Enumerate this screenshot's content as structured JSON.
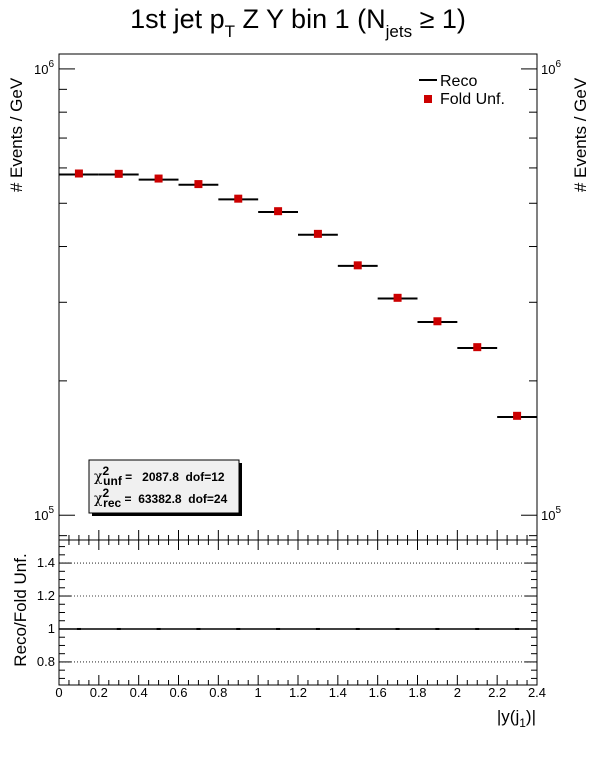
{
  "chart_data": {
    "type": "scatter",
    "title": {
      "main": "1st jet p",
      "main_sub": "T",
      "rest": " Z Y bin 1 (N",
      "rest_sub": "jets",
      "tail": " ≥ 1)"
    },
    "ylabel_left": "# Events / GeV",
    "ylabel_right": "# Events / GeV",
    "xlabel": {
      "base": "|y(j",
      "sub": "1",
      "tail": ")|"
    },
    "ratio_ylabel": "Reco/Fold Unf.",
    "y_scale": "log",
    "ylim": [
      88000,
      1080000
    ],
    "y_ticks": [
      {
        "base": "10",
        "exp": "6",
        "value": 1000000
      },
      {
        "base": "10",
        "exp": "5",
        "value": 100000
      }
    ],
    "xlim": [
      0,
      2.4
    ],
    "x_ticks": [
      "0",
      "0.2",
      "0.4",
      "0.6",
      "0.8",
      "1",
      "1.2",
      "1.4",
      "1.6",
      "1.8",
      "2",
      "2.2",
      "2.4"
    ],
    "ratio_ylim": [
      0.66,
      1.54
    ],
    "ratio_ticks": [
      "0.8",
      "1",
      "1.2",
      "1.4"
    ],
    "ratio_gridlines": [
      0.8,
      1.2,
      1.4
    ],
    "legend": {
      "position": "top-right",
      "entries": [
        {
          "label": "Reco",
          "marker": "line"
        },
        {
          "label": "Fold Unf.",
          "marker": "square"
        }
      ]
    },
    "series": [
      {
        "name": "Reco",
        "color": "#000000",
        "style": "horizontal-bin-lines",
        "bins": [
          [
            0,
            0.2
          ],
          [
            0.2,
            0.4
          ],
          [
            0.4,
            0.6
          ],
          [
            0.6,
            0.8
          ],
          [
            0.8,
            1.0
          ],
          [
            1.0,
            1.2
          ],
          [
            1.2,
            1.4
          ],
          [
            1.4,
            1.6
          ],
          [
            1.6,
            1.8
          ],
          [
            1.8,
            2.0
          ],
          [
            2.0,
            2.2
          ],
          [
            2.2,
            2.4
          ]
        ],
        "values": [
          580000,
          580000,
          565000,
          550000,
          510000,
          478000,
          425000,
          362000,
          306000,
          271000,
          237000,
          166000
        ]
      },
      {
        "name": "Fold Unf.",
        "color": "#cc0000",
        "style": "square-markers",
        "x": [
          0.1,
          0.3,
          0.5,
          0.7,
          0.9,
          1.1,
          1.3,
          1.5,
          1.7,
          1.9,
          2.1,
          2.3
        ],
        "values": [
          583000,
          582000,
          568000,
          552000,
          512000,
          480000,
          427000,
          363000,
          307000,
          272000,
          238000,
          167000
        ]
      }
    ],
    "ratio_values": [
      1,
      1,
      1,
      1,
      1,
      1,
      1,
      1,
      1,
      1,
      1,
      1
    ],
    "stats_box": {
      "line1": {
        "chi": "χ",
        "sup": "2",
        "sub": "unf",
        "text": " =   2087.8  dof=12"
      },
      "line2": {
        "chi": "χ",
        "sup": "2",
        "sub": "rec",
        "text": " =  63382.8  dof=24"
      }
    }
  }
}
